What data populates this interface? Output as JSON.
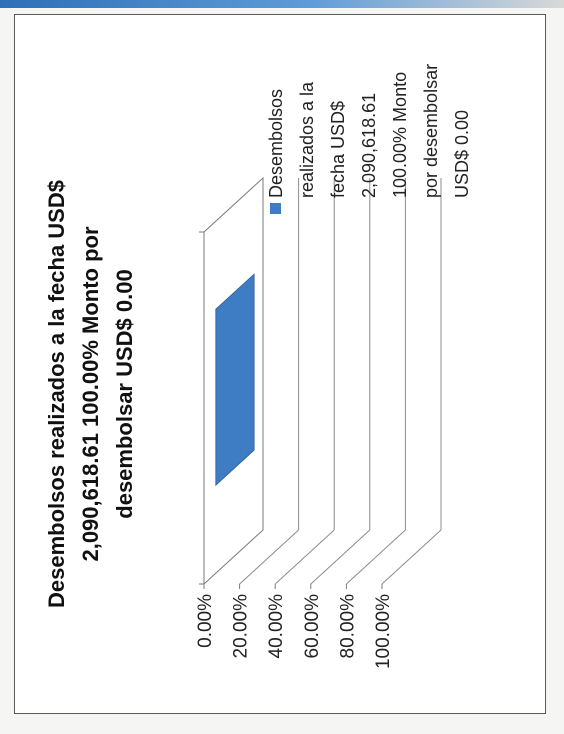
{
  "chart_data": {
    "type": "bar",
    "title": "Desembolsos realizados a la fecha USD$ 2,090,618.61 100.00% Monto por desembolsar USD$ 0.00",
    "title_lines": [
      "Desembolsos realizados a la fecha USD$",
      "2,090,618.61 100.00% Monto por",
      "desembolsar USD$ 0.00"
    ],
    "categories": [
      ""
    ],
    "series": [
      {
        "name": "Desembolsos realizados a la fecha USD$ 2,090,618.61 100.00% Monto por desembolsar USD$ 0.00",
        "name_lines": [
          "Desembolsos",
          "realizados a la",
          "fecha USD$",
          "2,090,618.61",
          "100.00% Monto",
          "por desembolsar",
          "USD$ 0.00"
        ],
        "values": [
          0
        ],
        "color": "#3e7cc4"
      }
    ],
    "ylim": [
      0,
      100
    ],
    "yticks": [
      "0.00%",
      "20.00%",
      "40.00%",
      "60.00%",
      "80.00%",
      "100.00%"
    ],
    "grid": true,
    "three_d": true,
    "legend": "right",
    "orientation": "rotated-90-ccw"
  }
}
